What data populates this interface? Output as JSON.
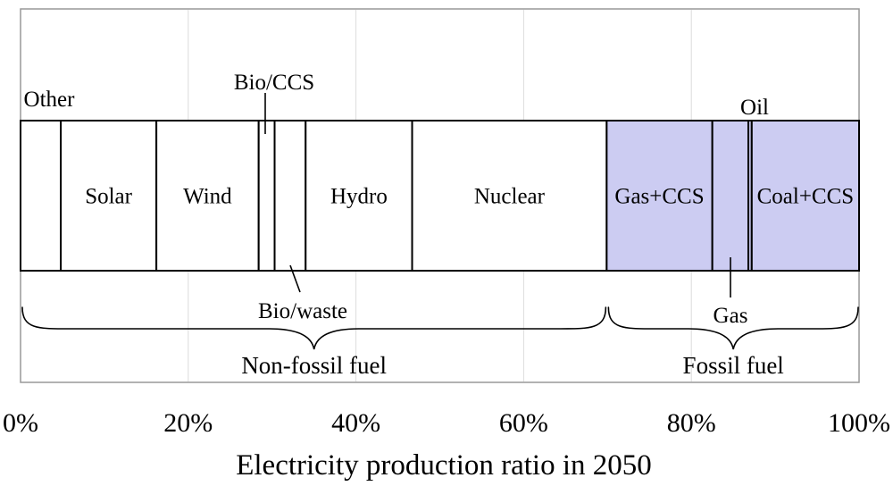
{
  "colors": {
    "ink": "#000000",
    "frame": "#999999",
    "grid": "#dcdcdc",
    "background": "#ffffff",
    "fossil_fill": "#ccccf2",
    "nonfossil_fill": "#ffffff"
  },
  "chart_data": {
    "type": "bar",
    "variant": "horizontal-stacked-100pct",
    "title": "Electricity production ratio in 2050",
    "x_ticks": [
      "0%",
      "20%",
      "40%",
      "60%",
      "80%",
      "100%"
    ],
    "x_range_pct": [
      0,
      100
    ],
    "grid": "vertical-light",
    "legend": "none",
    "segments": [
      {
        "label": "Other",
        "value_pct": 4.8,
        "group": "non-fossil",
        "label_pos": "above"
      },
      {
        "label": "Solar",
        "value_pct": 11.4,
        "group": "non-fossil",
        "label_pos": "inside"
      },
      {
        "label": "Wind",
        "value_pct": 12.2,
        "group": "non-fossil",
        "label_pos": "inside"
      },
      {
        "label": "Bio/CCS",
        "value_pct": 1.9,
        "group": "non-fossil",
        "label_pos": "callout-above"
      },
      {
        "label": "Bio/waste",
        "value_pct": 3.7,
        "group": "non-fossil",
        "label_pos": "callout-below"
      },
      {
        "label": "Hydro",
        "value_pct": 12.7,
        "group": "non-fossil",
        "label_pos": "inside"
      },
      {
        "label": "Nuclear",
        "value_pct": 23.2,
        "group": "non-fossil",
        "label_pos": "inside"
      },
      {
        "label": "Gas+CCS",
        "value_pct": 12.6,
        "group": "fossil",
        "label_pos": "inside"
      },
      {
        "label": "Gas",
        "value_pct": 4.3,
        "group": "fossil",
        "label_pos": "callout-below"
      },
      {
        "label": "Oil",
        "value_pct": 0.4,
        "group": "fossil",
        "label_pos": "above"
      },
      {
        "label": "Coal+CCS",
        "value_pct": 12.8,
        "group": "fossil",
        "label_pos": "inside"
      }
    ],
    "groups": [
      {
        "key": "non-fossil",
        "label": "Non-fossil fuel"
      },
      {
        "key": "fossil",
        "label": "Fossil fuel"
      }
    ]
  }
}
